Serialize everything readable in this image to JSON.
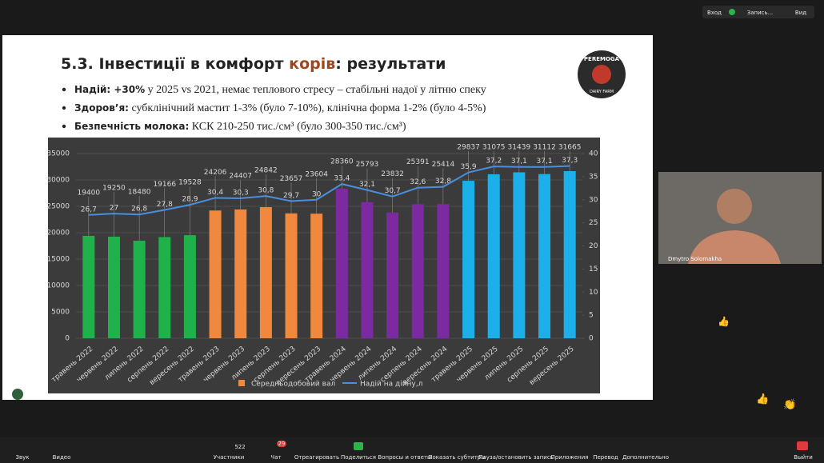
{
  "topbar": {
    "enter": "Вход",
    "record": "Запись...",
    "view": "Вид"
  },
  "slide": {
    "title_start": "5.3. Інвестиції в комфорт ",
    "title_accent": "корів",
    "title_end": ": результати",
    "logo_top": "PEREMOGA",
    "logo_bottom": "DAIRY FARM",
    "bullets": [
      {
        "bold": "Надій: +30%",
        "text": " у 2025 vs 2021, немає теплового стресу – стабільні надої у літню спеку"
      },
      {
        "bold": "Здоров’я:",
        "text": " субклінічний мастит 1-3% (було 7-10%), клінічна форма 1-2% (було 4-5%)"
      },
      {
        "bold": "Безпечність молока:",
        "text": "  КСК  210-250 тис./см³ (було 300-350 тис./см³)"
      }
    ]
  },
  "chart_data": {
    "type": "bar",
    "categories": [
      "травень 2022",
      "червень 2022",
      "липень 2022",
      "серпень 2022",
      "вересень 2022",
      "травень 2023",
      "червень 2023",
      "липень 2023",
      "серпень 2023",
      "вересень 2023",
      "травень 2024",
      "червень 2024",
      "липень 2024",
      "серпень 2024",
      "вересень 2024",
      "травень 2025",
      "червень 2025",
      "липень 2025",
      "серпень 2025",
      "вересень 2025"
    ],
    "series": [
      {
        "name": "Середньодобовий вал",
        "type": "bar",
        "color": "#f0883e",
        "colors": [
          "#1fb24a",
          "#1fb24a",
          "#1fb24a",
          "#1fb24a",
          "#1fb24a",
          "#f0883e",
          "#f0883e",
          "#f0883e",
          "#f0883e",
          "#f0883e",
          "#7b2aa0",
          "#7b2aa0",
          "#7b2aa0",
          "#7b2aa0",
          "#7b2aa0",
          "#1bb0ea",
          "#1bb0ea",
          "#1bb0ea",
          "#1bb0ea",
          "#1bb0ea"
        ],
        "values": [
          19400,
          19250,
          18480,
          19166,
          19528,
          24206,
          24407,
          24842,
          23657,
          23604,
          28360,
          25793,
          23832,
          25391,
          25414,
          29837,
          31075,
          31439,
          31112,
          31665
        ]
      },
      {
        "name": "Надій на дійну,л",
        "type": "line",
        "axis": "y2",
        "color": "#4a8fdd",
        "values": [
          26.7,
          27,
          26.8,
          27.8,
          28.9,
          30.4,
          30.3,
          30.8,
          29.7,
          30,
          33.4,
          32.1,
          30.7,
          32.6,
          32.8,
          35.9,
          37.2,
          37.1,
          37.1,
          37.3
        ],
        "value_labels": [
          "26,7",
          "27",
          "26,8",
          "27,8",
          "28,9",
          "30,4",
          "30,3",
          "30,8",
          "29,7",
          "30",
          "33,4",
          "32,1",
          "30,7",
          "32,6",
          "32,8",
          "35,9",
          "37,2",
          "37,1",
          "37,1",
          "37,3"
        ]
      }
    ],
    "ylim": [
      0,
      35000
    ],
    "yticks": [
      0,
      5000,
      10000,
      15000,
      20000,
      25000,
      30000,
      35000
    ],
    "y2lim": [
      0,
      40
    ],
    "y2ticks": [
      0,
      5,
      10,
      15,
      20,
      25,
      30,
      35,
      40
    ],
    "grid": true
  },
  "video": {
    "name": "Dmytro Solomakha"
  },
  "toolbar": {
    "sound": "Звук",
    "video": "Видео",
    "count": "522",
    "participants": "Участники",
    "chat_badge": "29",
    "chat": "Чат",
    "react": "Отреагировать",
    "share": "Поделиться",
    "qa": "Вопросы и ответы",
    "captions": "Показать субтитры",
    "pause": "Пауза/остановить запись",
    "apps": "Приложения",
    "translate": "Перевод",
    "more": "Дополнительно",
    "leave": "Выйти"
  }
}
